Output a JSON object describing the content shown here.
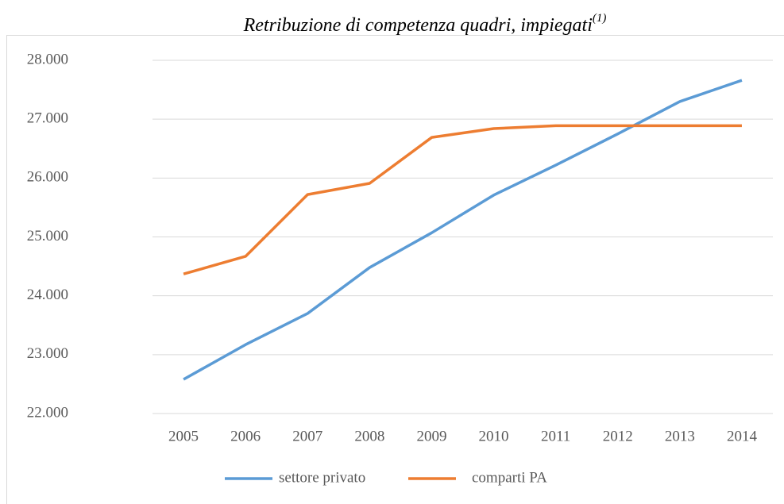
{
  "chart_data": {
    "type": "line",
    "title": "Retribuzione di competenza quadri, impiegati",
    "title_note": "(1)",
    "x": [
      2005,
      2006,
      2007,
      2008,
      2009,
      2010,
      2011,
      2012,
      2013,
      2014
    ],
    "series": [
      {
        "name": "settore privato",
        "color": "#5b9bd5",
        "values": [
          22580,
          23170,
          23700,
          24480,
          25070,
          25710,
          26220,
          26750,
          27300,
          27660
        ]
      },
      {
        "name": "comparti PA",
        "color": "#ed7d31",
        "values": [
          24370,
          24670,
          25720,
          25910,
          26690,
          26840,
          26890,
          26890,
          26890,
          26890
        ]
      }
    ],
    "ylim": [
      22000,
      28000
    ],
    "yticks": [
      {
        "value": 22000,
        "label": "22.000"
      },
      {
        "value": 23000,
        "label": "23.000"
      },
      {
        "value": 24000,
        "label": "24.000"
      },
      {
        "value": 25000,
        "label": "25.000"
      },
      {
        "value": 26000,
        "label": "26.000"
      },
      {
        "value": 27000,
        "label": "27.000"
      },
      {
        "value": 28000,
        "label": "28.000"
      }
    ],
    "grid": true,
    "legend": "bottom"
  }
}
